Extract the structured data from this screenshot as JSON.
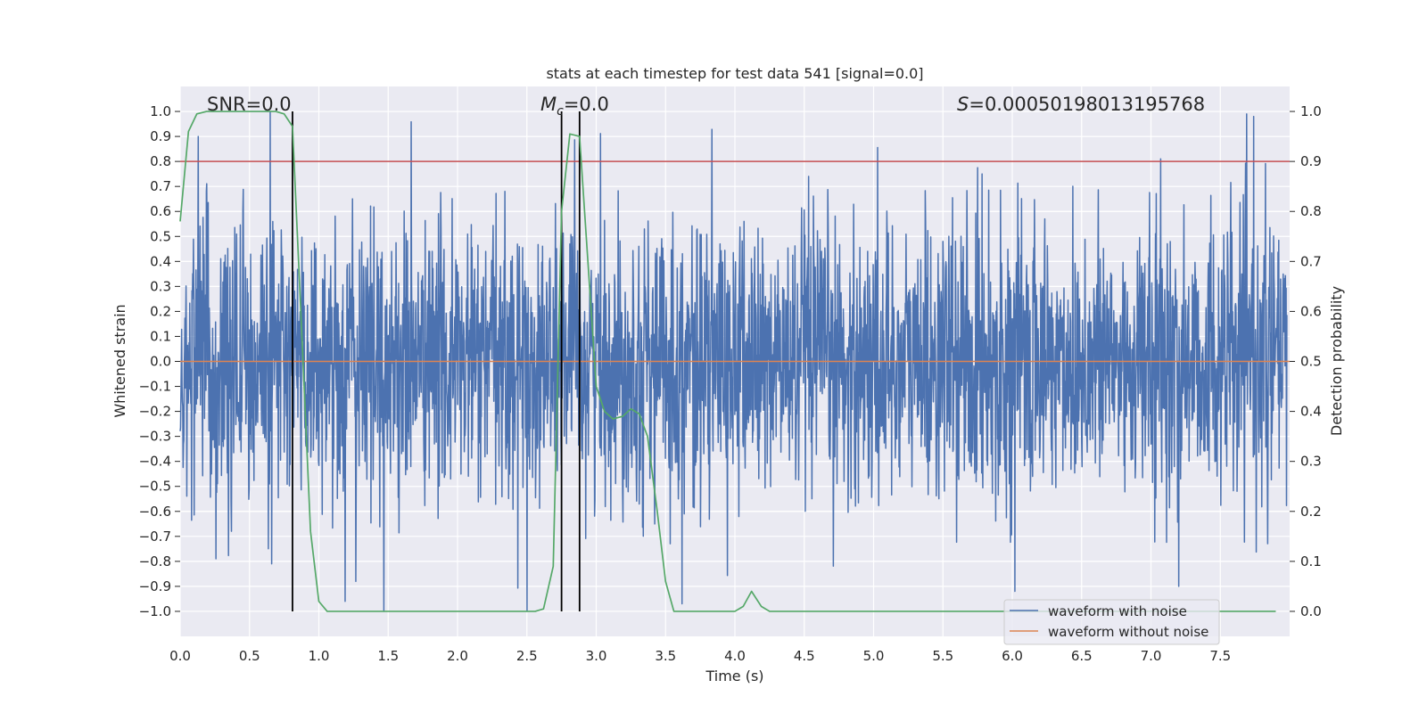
{
  "chart_data": {
    "type": "line",
    "title": "stats at each timestep for test data 541 [signal=0.0]",
    "xlabel": "Time (s)",
    "ylabel": "Whitened strain",
    "y2label": "Detection probability",
    "xlim": [
      0.0,
      8.0
    ],
    "ylim": [
      -1.1,
      1.1
    ],
    "y2lim": [
      -0.05,
      1.05
    ],
    "x_ticks": [
      0.0,
      0.5,
      1.0,
      1.5,
      2.0,
      2.5,
      3.0,
      3.5,
      4.0,
      4.5,
      5.0,
      5.5,
      6.0,
      6.5,
      7.0,
      7.5
    ],
    "x_tick_labels": [
      "0.0",
      "0.5",
      "1.0",
      "1.5",
      "2.0",
      "2.5",
      "3.0",
      "3.5",
      "4.0",
      "4.5",
      "5.0",
      "5.5",
      "6.0",
      "6.5",
      "7.0",
      "7.5"
    ],
    "y_ticks": [
      1.0,
      0.9,
      0.8,
      0.7,
      0.6,
      0.5,
      0.4,
      0.3,
      0.2,
      0.1,
      0.0,
      -0.1,
      -0.2,
      -0.3,
      -0.4,
      -0.5,
      -0.6,
      -0.7,
      -0.8,
      -0.9,
      -1.0
    ],
    "y_tick_labels": [
      "1.0",
      "0.9",
      "0.8",
      "0.7",
      "0.6",
      "0.5",
      "0.4",
      "0.3",
      "0.2",
      "0.1",
      "0.0",
      "−0.1",
      "−0.2",
      "−0.3",
      "−0.4",
      "−0.5",
      "−0.6",
      "−0.7",
      "−0.8",
      "−0.9",
      "−1.0"
    ],
    "y2_ticks": [
      1.0,
      0.9,
      0.8,
      0.7,
      0.6,
      0.5,
      0.4,
      0.3,
      0.2,
      0.1,
      0.0
    ],
    "y2_tick_labels": [
      "1.0",
      "0.9",
      "0.8",
      "0.7",
      "0.6",
      "0.5",
      "0.4",
      "0.3",
      "0.2",
      "0.1",
      "0.0"
    ],
    "annotations": {
      "snr": "SNR=0.0",
      "mc_symbol": "M",
      "mc_sub": "c",
      "mc_value": "=0.0",
      "s_symbol": "S",
      "s_value": "=0.00050198013195768"
    },
    "legend": {
      "location": "lower right",
      "entries": [
        "waveform with noise",
        "waveform without noise"
      ]
    },
    "threshold": {
      "axis": "y2",
      "value": 0.9,
      "color": "#c44e52"
    },
    "vertical_markers_s": [
      0.81,
      2.75,
      2.88
    ],
    "series": [
      {
        "name": "waveform with noise",
        "color": "#4c72b0",
        "axis": "y",
        "description": "whitened noise, roughly ±0.6 with peaks to ±1.0",
        "noise_envelope": 0.6,
        "notable_peaks": [
          {
            "x": 0.65,
            "y": 1.0
          },
          {
            "x": 0.13,
            "y": 0.9
          },
          {
            "x": 7.74,
            "y": 0.98
          },
          {
            "x": 6.02,
            "y": -0.92
          },
          {
            "x": 7.2,
            "y": -0.9
          },
          {
            "x": 1.47,
            "y": -1.0
          },
          {
            "x": 2.5,
            "y": -1.0
          },
          {
            "x": 0.66,
            "y": -0.81
          },
          {
            "x": 3.62,
            "y": -0.97
          },
          {
            "x": 1.19,
            "y": -0.96
          }
        ]
      },
      {
        "name": "waveform without noise",
        "color": "#dd8452",
        "axis": "y",
        "x": [
          0.0,
          8.0
        ],
        "y": [
          0.0,
          0.0
        ]
      },
      {
        "name": "detection probability",
        "color": "#55a868",
        "axis": "y2",
        "x": [
          0.0,
          0.06,
          0.12,
          0.19,
          0.5,
          0.69,
          0.75,
          0.81,
          0.87,
          0.94,
          1.0,
          1.06,
          1.12,
          1.25,
          2.5,
          2.56,
          2.62,
          2.69,
          2.75,
          2.81,
          2.88,
          2.94,
          3.0,
          3.06,
          3.12,
          3.19,
          3.25,
          3.31,
          3.37,
          3.44,
          3.5,
          3.56,
          3.62,
          3.75,
          3.94,
          4.0,
          4.06,
          4.12,
          4.19,
          4.25,
          4.5,
          5.5,
          7.9
        ],
        "y": [
          0.78,
          0.96,
          0.995,
          1.0,
          1.0,
          1.0,
          0.995,
          0.97,
          0.6,
          0.16,
          0.02,
          0.0,
          0.0,
          0.0,
          0.0,
          0.0,
          0.005,
          0.09,
          0.8,
          0.955,
          0.95,
          0.7,
          0.45,
          0.4,
          0.385,
          0.39,
          0.405,
          0.395,
          0.35,
          0.2,
          0.06,
          0.0,
          0.0,
          0.0,
          0.0,
          0.0,
          0.01,
          0.04,
          0.01,
          0.0,
          0.0,
          0.0,
          0.0
        ]
      }
    ]
  }
}
